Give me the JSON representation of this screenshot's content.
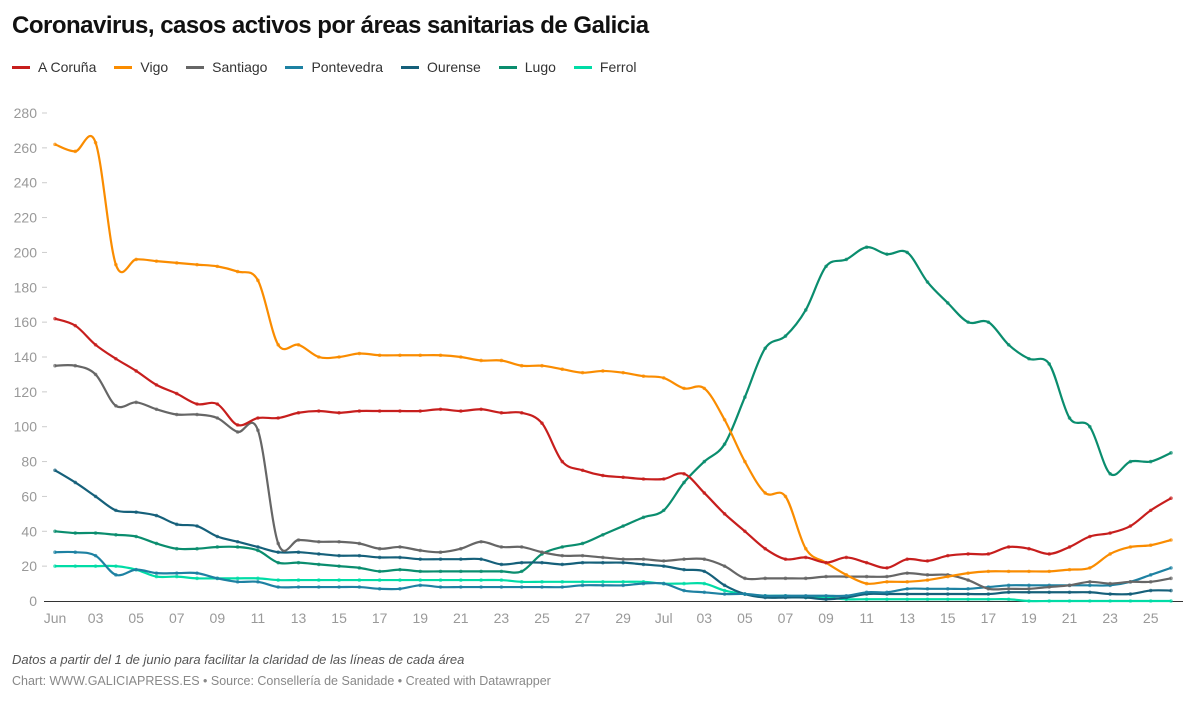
{
  "title": "Coronavirus, casos activos por áreas sanitarias de Galicia",
  "note": "Datos a partir del 1 de junio para facilitar la claridad de las líneas de cada área",
  "source": "Chart: WWW.GALICIAPRESS.ES • Source: Consellería de Sanidade • Created with Datawrapper",
  "chart_data": {
    "type": "line",
    "title": "Coronavirus, casos activos por áreas sanitarias de Galicia",
    "xlabel": "",
    "ylabel": "",
    "ylim": [
      0,
      280
    ],
    "yticks": [
      0,
      20,
      40,
      60,
      80,
      100,
      120,
      140,
      160,
      180,
      200,
      220,
      240,
      260,
      280
    ],
    "x_start": "2020-06-01",
    "x_end": "2020-07-26",
    "xtick_labels": [
      "Jun",
      "03",
      "05",
      "07",
      "09",
      "11",
      "13",
      "15",
      "17",
      "19",
      "21",
      "23",
      "25",
      "27",
      "29",
      "Jul",
      "03",
      "05",
      "07",
      "09",
      "11",
      "13",
      "15",
      "17",
      "19",
      "21",
      "23",
      "25"
    ],
    "grid": false,
    "legend_position": "top-left",
    "series": [
      {
        "name": "A Coruña",
        "color": "#c71e1d",
        "values": [
          162,
          158,
          147,
          139,
          132,
          124,
          119,
          113,
          113,
          101,
          105,
          105,
          108,
          109,
          108,
          109,
          109,
          109,
          109,
          110,
          109,
          110,
          108,
          108,
          102,
          80,
          75,
          72,
          71,
          70,
          70,
          73,
          62,
          50,
          40,
          30,
          24,
          25,
          22,
          25,
          22,
          19,
          24,
          23,
          26,
          27,
          27,
          31,
          30,
          27,
          31,
          37,
          39,
          43,
          52,
          59
        ]
      },
      {
        "name": "Vigo",
        "color": "#fa8c00",
        "values": [
          262,
          258,
          263,
          193,
          196,
          195,
          194,
          193,
          192,
          189,
          184,
          147,
          147,
          140,
          140,
          142,
          141,
          141,
          141,
          141,
          140,
          138,
          138,
          135,
          135,
          133,
          131,
          132,
          131,
          129,
          128,
          122,
          122,
          104,
          80,
          62,
          60,
          30,
          22,
          15,
          10,
          11,
          11,
          12,
          14,
          16,
          17,
          17,
          17,
          17,
          18,
          19,
          27,
          31,
          32,
          35
        ]
      },
      {
        "name": "Santiago",
        "color": "#666666",
        "values": [
          135,
          135,
          130,
          112,
          114,
          110,
          107,
          107,
          105,
          97,
          98,
          33,
          35,
          34,
          34,
          33,
          30,
          31,
          29,
          28,
          30,
          34,
          31,
          31,
          28,
          26,
          26,
          25,
          24,
          24,
          23,
          24,
          24,
          20,
          13,
          13,
          13,
          13,
          14,
          14,
          14,
          14,
          16,
          15,
          15,
          12,
          7,
          7,
          7,
          8,
          9,
          11,
          10,
          11,
          11,
          13
        ]
      },
      {
        "name": "Pontevedra",
        "color": "#1d81a2",
        "values": [
          28,
          28,
          26,
          15,
          18,
          16,
          16,
          16,
          13,
          11,
          11,
          8,
          8,
          8,
          8,
          8,
          7,
          7,
          9,
          8,
          8,
          8,
          8,
          8,
          8,
          8,
          9,
          9,
          9,
          10,
          10,
          6,
          5,
          4,
          4,
          3,
          3,
          3,
          3,
          3,
          5,
          5,
          7,
          7,
          7,
          7,
          8,
          9,
          9,
          9,
          9,
          9,
          9,
          11,
          15,
          19
        ]
      },
      {
        "name": "Ourense",
        "color": "#15607a",
        "values": [
          75,
          68,
          60,
          52,
          51,
          49,
          44,
          43,
          37,
          34,
          31,
          28,
          28,
          27,
          26,
          26,
          25,
          25,
          24,
          24,
          24,
          24,
          21,
          22,
          22,
          21,
          22,
          22,
          22,
          21,
          20,
          18,
          17,
          9,
          4,
          2,
          2,
          2,
          1,
          2,
          4,
          4,
          4,
          4,
          4,
          4,
          4,
          5,
          5,
          5,
          5,
          5,
          4,
          4,
          6,
          6
        ]
      },
      {
        "name": "Lugo",
        "color": "#0a8d6e",
        "values": [
          40,
          39,
          39,
          38,
          37,
          33,
          30,
          30,
          31,
          31,
          29,
          22,
          22,
          21,
          20,
          19,
          17,
          18,
          17,
          17,
          17,
          17,
          17,
          17,
          27,
          31,
          33,
          38,
          43,
          48,
          52,
          68,
          80,
          90,
          117,
          145,
          152,
          167,
          192,
          196,
          203,
          199,
          200,
          183,
          171,
          160,
          160,
          147,
          139,
          136,
          105,
          100,
          73,
          80,
          80,
          85
        ]
      },
      {
        "name": "Ferrol",
        "color": "#00dca6",
        "values": [
          20,
          20,
          20,
          20,
          18,
          14,
          14,
          13,
          13,
          13,
          13,
          12,
          12,
          12,
          12,
          12,
          12,
          12,
          12,
          12,
          12,
          12,
          12,
          11,
          11,
          11,
          11,
          11,
          11,
          11,
          10,
          10,
          10,
          6,
          4,
          3,
          3,
          2,
          2,
          1,
          1,
          1,
          1,
          1,
          1,
          1,
          1,
          1,
          0,
          0,
          0,
          0,
          0,
          0,
          0,
          0
        ]
      }
    ]
  }
}
